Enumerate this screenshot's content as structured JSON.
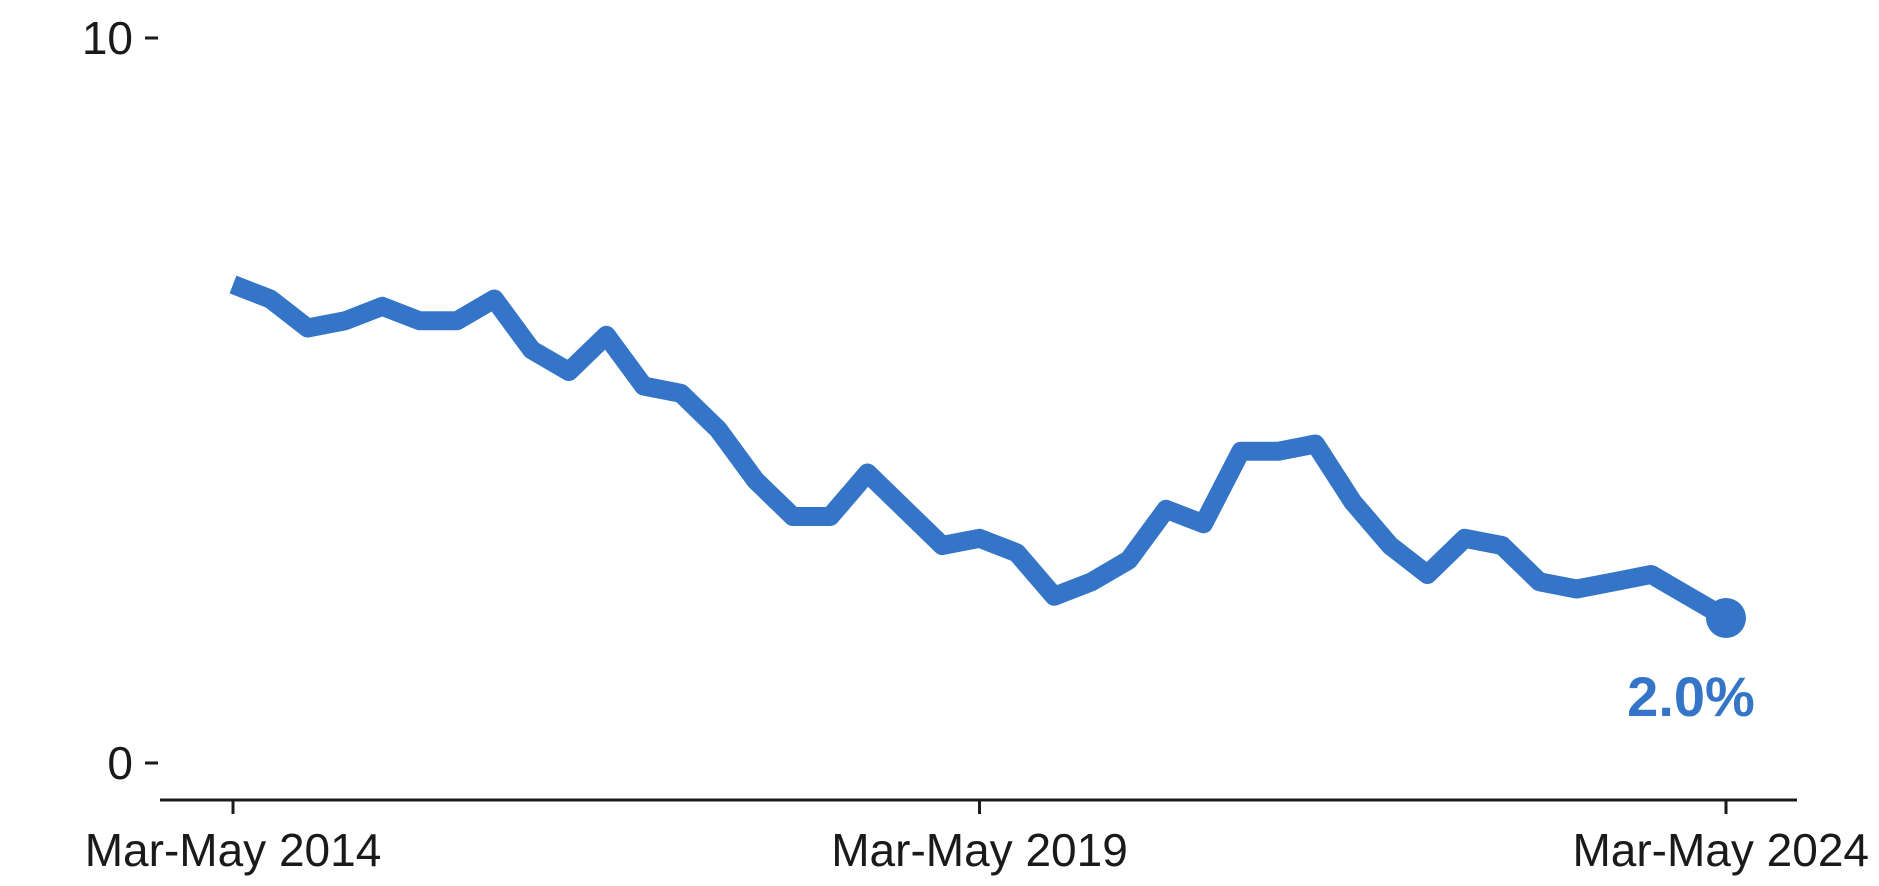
{
  "colors": {
    "series": "#3575C8",
    "axis": "#1a1a1a"
  },
  "chart_data": {
    "type": "line",
    "title": "",
    "xlabel": "",
    "ylabel": "",
    "ylim": [
      0,
      10
    ],
    "yticks": [
      0,
      10
    ],
    "ytick_labels": [
      "0",
      "10"
    ],
    "xticks": [
      0,
      20,
      40
    ],
    "xtick_labels": [
      "Mar-May 2014",
      "Mar-May 2019",
      "Mar-May 2024"
    ],
    "grid": false,
    "legend": "none",
    "series": [
      {
        "x": [
          "Mar-May 2014",
          "Jun-Aug 2014",
          "Sep-Nov 2014",
          "Dec-Feb 2015",
          "Mar-May 2015",
          "Jun-Aug 2015",
          "Sep-Nov 2015",
          "Dec-Feb 2016",
          "Mar-May 2016",
          "Jun-Aug 2016",
          "Sep-Nov 2016",
          "Dec-Feb 2017",
          "Mar-May 2017",
          "Jun-Aug 2017",
          "Sep-Nov 2017",
          "Dec-Feb 2018",
          "Mar-May 2018",
          "Jun-Aug 2018",
          "Sep-Nov 2018",
          "Dec-Feb 2019",
          "Mar-May 2019",
          "Jun-Aug 2019",
          "Sep-Nov 2019",
          "Dec-Feb 2020",
          "Mar-May 2020",
          "Jun-Aug 2020",
          "Sep-Nov 2020",
          "Dec-Feb 2021",
          "Mar-May 2021",
          "Jun-Aug 2021",
          "Sep-Nov 2021",
          "Dec-Feb 2022",
          "Mar-May 2022",
          "Jun-Aug 2022",
          "Sep-Nov 2022",
          "Dec-Feb 2023",
          "Mar-May 2023",
          "Jun-Aug 2023",
          "Sep-Nov 2023",
          "Dec-Feb 2024",
          "Mar-May 2024"
        ],
        "values": [
          6.6,
          6.4,
          6.0,
          6.1,
          6.3,
          6.1,
          6.1,
          6.4,
          5.7,
          5.4,
          5.9,
          5.2,
          5.1,
          4.6,
          3.9,
          3.4,
          3.4,
          4.0,
          3.5,
          3.0,
          3.1,
          2.9,
          2.3,
          2.5,
          2.8,
          3.5,
          3.3,
          4.3,
          4.3,
          4.4,
          3.6,
          3.0,
          2.6,
          3.1,
          3.0,
          2.5,
          2.4,
          2.5,
          2.6,
          2.3,
          2.0
        ]
      }
    ],
    "end_label": "2.0%"
  }
}
